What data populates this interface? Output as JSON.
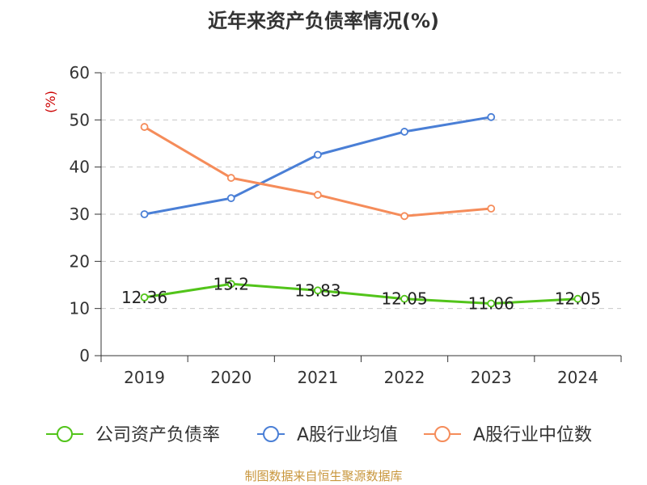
{
  "chart_data": {
    "type": "line",
    "title": "近年来资产负债率情况(%)",
    "ylabel": "(%)",
    "xlabel": "",
    "categories": [
      "2019",
      "2020",
      "2021",
      "2022",
      "2023",
      "2024"
    ],
    "ylim": [
      0,
      60
    ],
    "yticks": [
      0,
      10,
      20,
      30,
      40,
      50,
      60
    ],
    "grid": true,
    "legend_position": "bottom",
    "series": [
      {
        "name": "公司资产负债率",
        "color": "#52c41a",
        "values": [
          12.36,
          15.2,
          13.83,
          12.05,
          11.06,
          12.05
        ],
        "labels": [
          "12.36",
          "15.2",
          "13.83",
          "12.05",
          "11.06",
          "12.05"
        ]
      },
      {
        "name": "A股行业均值",
        "color": "#4a7fd6",
        "values": [
          30.0,
          33.4,
          42.6,
          47.5,
          50.6,
          null
        ]
      },
      {
        "name": "A股行业中位数",
        "color": "#f58c5a",
        "values": [
          48.5,
          37.7,
          34.1,
          29.6,
          31.2,
          null
        ]
      }
    ]
  },
  "source": "制图数据来自恒生聚源数据库"
}
